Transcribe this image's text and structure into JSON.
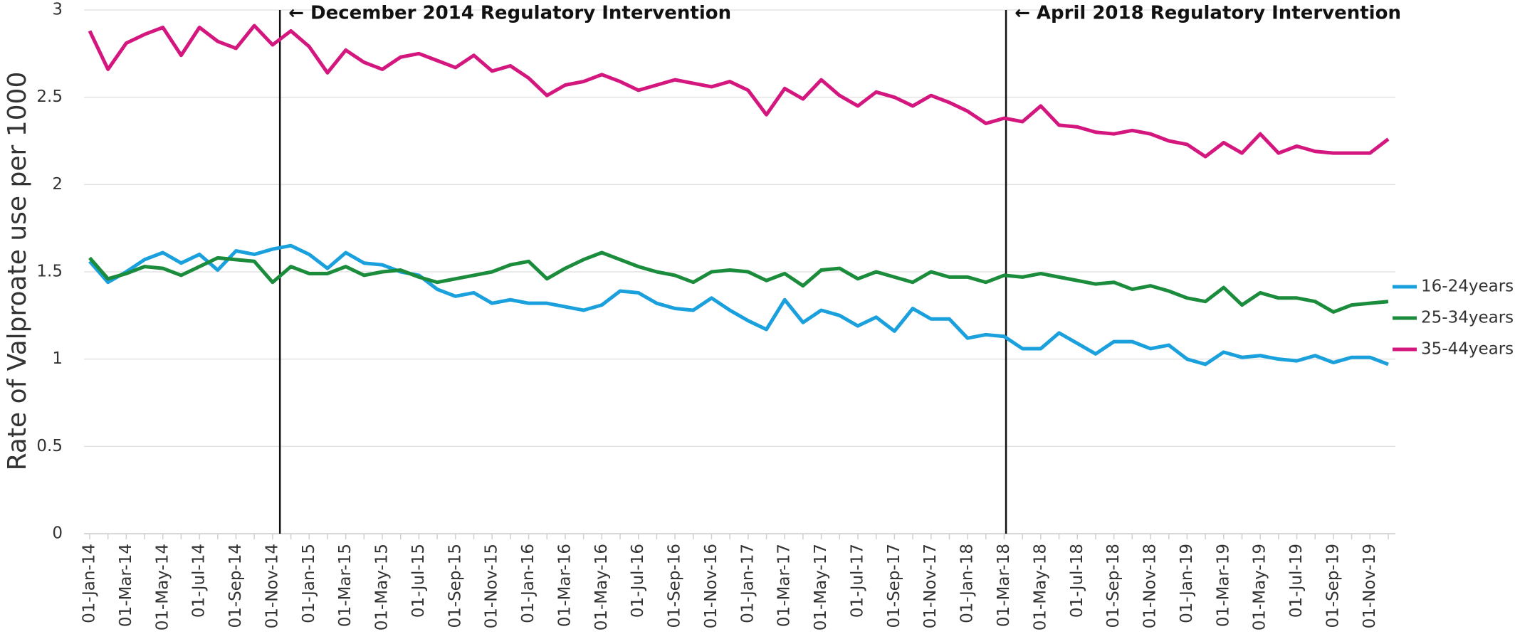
{
  "chart_data": {
    "type": "line",
    "ylabel": "Rate of Valproate use per 1000",
    "categories": [
      "01-Jan-14",
      null,
      "01-Mar-14",
      null,
      "01-May-14",
      null,
      "01-Jul-14",
      null,
      "01-Sep-14",
      null,
      "01-Nov-14",
      null,
      "01-Jan-15",
      null,
      "01-Mar-15",
      null,
      "01-May-15",
      null,
      "01-Jul-15",
      null,
      "01-Sep-15",
      null,
      "01-Nov-15",
      null,
      "01-Jan-16",
      null,
      "01-Mar-16",
      null,
      "01-May-16",
      null,
      "01-Jul-16",
      null,
      "01-Sep-16",
      null,
      "01-Nov-16",
      null,
      "01-Jan-17",
      null,
      "01-Mar-17",
      null,
      "01-May-17",
      null,
      "01-Jul-17",
      null,
      "01-Sep-17",
      null,
      "01-Nov-17",
      null,
      "01-Jan-18",
      null,
      "01-Mar-18",
      null,
      "01-May-18",
      null,
      "01-Jul-18",
      null,
      "01-Sep-18",
      null,
      "01-Nov-18",
      null,
      "01-Jan-19",
      null,
      "01-Mar-19",
      null,
      "01-May-19",
      null,
      "01-Jul-19",
      null,
      "01-Sep-19",
      null,
      "01-Nov-19",
      null
    ],
    "series": [
      {
        "name": "16-24years",
        "color": "#1aa0dc",
        "values": [
          1.56,
          1.44,
          1.5,
          1.57,
          1.61,
          1.55,
          1.6,
          1.51,
          1.62,
          1.6,
          1.63,
          1.65,
          1.6,
          1.52,
          1.61,
          1.55,
          1.54,
          1.5,
          1.48,
          1.4,
          1.36,
          1.38,
          1.32,
          1.34,
          1.32,
          1.32,
          1.3,
          1.28,
          1.31,
          1.39,
          1.38,
          1.32,
          1.29,
          1.28,
          1.35,
          1.28,
          1.22,
          1.17,
          1.34,
          1.21,
          1.28,
          1.25,
          1.19,
          1.24,
          1.16,
          1.29,
          1.23,
          1.23,
          1.12,
          1.14,
          1.13,
          1.06,
          1.06,
          1.15,
          1.09,
          1.03,
          1.1,
          1.1,
          1.06,
          1.08,
          1.0,
          0.97,
          1.04,
          1.01,
          1.02,
          1.0,
          0.99,
          1.02,
          0.98,
          1.01,
          1.01,
          0.97
        ]
      },
      {
        "name": "25-34years",
        "color": "#1a8c3c",
        "values": [
          1.58,
          1.46,
          1.49,
          1.53,
          1.52,
          1.48,
          1.53,
          1.58,
          1.57,
          1.56,
          1.44,
          1.53,
          1.49,
          1.49,
          1.53,
          1.48,
          1.5,
          1.51,
          1.47,
          1.44,
          1.46,
          1.48,
          1.5,
          1.54,
          1.56,
          1.46,
          1.52,
          1.57,
          1.61,
          1.57,
          1.53,
          1.5,
          1.48,
          1.44,
          1.5,
          1.51,
          1.5,
          1.45,
          1.49,
          1.42,
          1.51,
          1.52,
          1.46,
          1.5,
          1.47,
          1.44,
          1.5,
          1.47,
          1.47,
          1.44,
          1.48,
          1.47,
          1.49,
          1.47,
          1.45,
          1.43,
          1.44,
          1.4,
          1.42,
          1.39,
          1.35,
          1.33,
          1.41,
          1.31,
          1.38,
          1.35,
          1.35,
          1.33,
          1.27,
          1.31,
          1.32,
          1.33
        ]
      },
      {
        "name": "35-44years",
        "color": "#d4177e",
        "values": [
          2.88,
          2.66,
          2.81,
          2.86,
          2.9,
          2.74,
          2.9,
          2.82,
          2.78,
          2.91,
          2.8,
          2.88,
          2.79,
          2.64,
          2.77,
          2.7,
          2.66,
          2.73,
          2.75,
          2.71,
          2.67,
          2.74,
          2.65,
          2.68,
          2.61,
          2.51,
          2.57,
          2.59,
          2.63,
          2.59,
          2.54,
          2.57,
          2.6,
          2.58,
          2.56,
          2.59,
          2.54,
          2.4,
          2.55,
          2.49,
          2.6,
          2.51,
          2.45,
          2.53,
          2.5,
          2.45,
          2.51,
          2.47,
          2.42,
          2.35,
          2.38,
          2.36,
          2.45,
          2.34,
          2.33,
          2.3,
          2.29,
          2.31,
          2.29,
          2.25,
          2.23,
          2.16,
          2.24,
          2.18,
          2.29,
          2.18,
          2.22,
          2.19,
          2.18,
          2.18,
          2.18,
          2.26
        ]
      }
    ],
    "ylim": [
      0,
      3
    ],
    "yticks": [
      0,
      0.5,
      1,
      1.5,
      2,
      2.5,
      3
    ],
    "grid": true,
    "legend": "right",
    "annotations": [
      {
        "text": "← December 2014 Regulatory Intervention",
        "x": 10.4
      },
      {
        "text": "← April 2018 Regulatory Intervention",
        "x": 50.1
      }
    ]
  }
}
